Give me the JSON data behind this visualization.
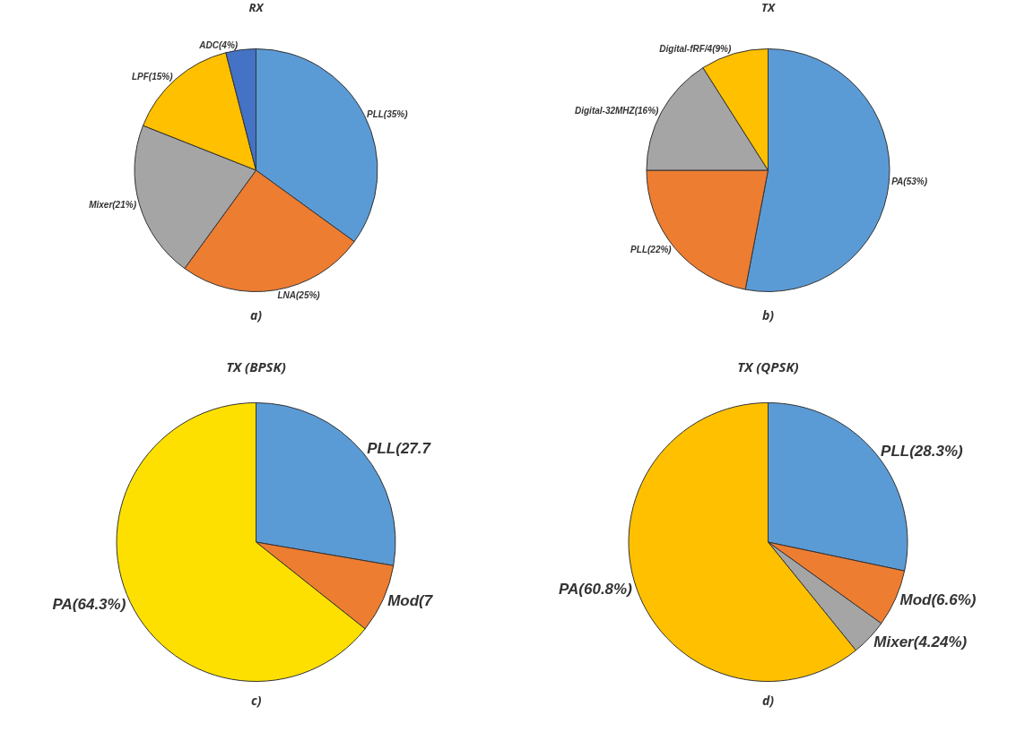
{
  "chart_data": [
    {
      "type": "pie",
      "title": "RX",
      "categories": [
        "PLL(35%)",
        "LNA(25%)",
        "Mixer(21%)",
        "LPF(15%)",
        "ADC(4%)"
      ],
      "values": [
        35,
        25,
        21,
        15,
        4
      ],
      "colors": [
        "#5b9bd5",
        "#ed7d31",
        "#a5a5a5",
        "#ffc000",
        "#4472c4"
      ],
      "annotations": [
        "a)"
      ],
      "legend": false
    },
    {
      "type": "pie",
      "title": "TX",
      "categories": [
        "PA(53%)",
        "PLL(22%)",
        "Digital-32MHZ(16%)",
        "Digital-fRF/4(9%)"
      ],
      "values": [
        53,
        22,
        16,
        9
      ],
      "colors": [
        "#5b9bd5",
        "#ed7d31",
        "#a5a5a5",
        "#ffc000"
      ],
      "annotations": [
        "b)"
      ],
      "legend": false
    },
    {
      "type": "pie",
      "title": "TX (BPSK)",
      "categories": [
        "PLL(27.7",
        "Mod(7",
        "PA(64.3%)"
      ],
      "values": [
        27.7,
        8,
        64.3
      ],
      "colors": [
        "#5b9bd5",
        "#ed7d31",
        "#fde000"
      ],
      "annotations": [
        "c)"
      ],
      "legend": false
    },
    {
      "type": "pie",
      "title": "TX (QPSK)",
      "categories": [
        "PLL(28.3%)",
        "Mod(6.6%)",
        "Mixer(4.24%)",
        "PA(60.8%)"
      ],
      "values": [
        28.3,
        6.6,
        4.24,
        60.8
      ],
      "colors": [
        "#5b9bd5",
        "#ed7d31",
        "#a5a5a5",
        "#ffc000"
      ],
      "annotations": [
        "d)"
      ],
      "legend": false
    }
  ]
}
